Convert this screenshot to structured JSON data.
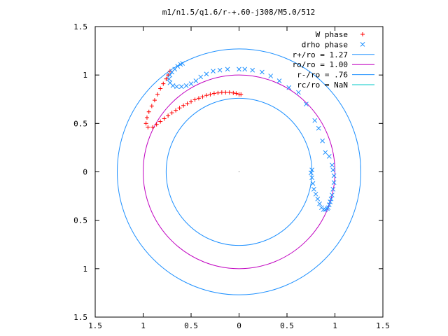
{
  "chart_data": {
    "type": "scatter",
    "title": "m1/n1.5/q1.6/r-+.60-j308/M5.0/512",
    "xlabel": "",
    "ylabel": "",
    "xlim": [
      -1.5,
      1.5
    ],
    "ylim": [
      -1.5,
      1.5
    ],
    "x_tick_values": [
      -1.5,
      -1,
      -0.5,
      0,
      0.5,
      1,
      1.5
    ],
    "x_tick_labels": [
      "1.5",
      "1",
      "0.5",
      "0",
      "0.5",
      "1",
      "1.5"
    ],
    "y_tick_values": [
      1.5,
      1,
      0.5,
      0,
      -0.5,
      -1,
      -1.5
    ],
    "y_tick_labels": [
      "1.5",
      "1",
      "0.5",
      "0",
      "0.5",
      "1",
      "1.5"
    ],
    "grid": false,
    "legend_position": "top-right",
    "series": [
      {
        "name": "W phase",
        "marker": "plus",
        "color": "#ff0000",
        "points": [
          [
            0.02,
            0.8
          ],
          [
            0.0,
            0.8
          ],
          [
            -0.03,
            0.81
          ],
          [
            -0.06,
            0.815
          ],
          [
            -0.1,
            0.82
          ],
          [
            -0.14,
            0.82
          ],
          [
            -0.18,
            0.82
          ],
          [
            -0.22,
            0.815
          ],
          [
            -0.26,
            0.81
          ],
          [
            -0.3,
            0.8
          ],
          [
            -0.34,
            0.79
          ],
          [
            -0.38,
            0.775
          ],
          [
            -0.42,
            0.76
          ],
          [
            -0.46,
            0.745
          ],
          [
            -0.5,
            0.725
          ],
          [
            -0.54,
            0.705
          ],
          [
            -0.58,
            0.685
          ],
          [
            -0.62,
            0.66
          ],
          [
            -0.66,
            0.635
          ],
          [
            -0.7,
            0.61
          ],
          [
            -0.74,
            0.58
          ],
          [
            -0.78,
            0.55
          ],
          [
            -0.82,
            0.52
          ],
          [
            -0.86,
            0.49
          ],
          [
            -0.9,
            0.46
          ],
          [
            -0.95,
            0.46
          ],
          [
            -0.97,
            0.5
          ],
          [
            -0.96,
            0.56
          ],
          [
            -0.94,
            0.62
          ],
          [
            -0.91,
            0.68
          ],
          [
            -0.88,
            0.74
          ],
          [
            -0.85,
            0.8
          ],
          [
            -0.82,
            0.86
          ],
          [
            -0.79,
            0.91
          ],
          [
            -0.76,
            0.96
          ],
          [
            -0.74,
            1.0
          ],
          [
            -0.72,
            1.04
          ]
        ]
      },
      {
        "name": "drho phase",
        "marker": "cross",
        "color": "#1e90ff",
        "points": [
          [
            0.0,
            1.06
          ],
          [
            0.06,
            1.06
          ],
          [
            0.14,
            1.05
          ],
          [
            0.24,
            1.03
          ],
          [
            0.33,
            0.99
          ],
          [
            0.42,
            0.94
          ],
          [
            0.52,
            0.87
          ],
          [
            0.62,
            0.82
          ],
          [
            0.7,
            0.7
          ],
          [
            0.79,
            0.53
          ],
          [
            0.83,
            0.45
          ],
          [
            0.87,
            0.32
          ],
          [
            0.9,
            0.2
          ],
          [
            0.94,
            0.16
          ],
          [
            0.97,
            0.07
          ],
          [
            0.98,
            0.02
          ],
          [
            0.99,
            -0.04
          ],
          [
            0.99,
            -0.11
          ],
          [
            0.98,
            -0.18
          ],
          [
            0.97,
            -0.24
          ],
          [
            0.96,
            -0.28
          ],
          [
            0.95,
            -0.31
          ],
          [
            0.94,
            -0.34
          ],
          [
            0.93,
            -0.37
          ],
          [
            0.92,
            -0.38
          ],
          [
            0.9,
            -0.39
          ],
          [
            0.88,
            -0.39
          ],
          [
            0.86,
            -0.37
          ],
          [
            0.84,
            -0.33
          ],
          [
            0.82,
            -0.28
          ],
          [
            0.8,
            -0.23
          ],
          [
            0.78,
            -0.18
          ],
          [
            0.77,
            -0.12
          ],
          [
            0.76,
            -0.06
          ],
          [
            0.75,
            -0.01
          ],
          [
            0.76,
            0.02
          ],
          [
            -0.12,
            1.06
          ],
          [
            -0.2,
            1.05
          ],
          [
            -0.27,
            1.04
          ],
          [
            -0.34,
            1.01
          ],
          [
            -0.4,
            0.98
          ],
          [
            -0.45,
            0.94
          ],
          [
            -0.5,
            0.91
          ],
          [
            -0.55,
            0.89
          ],
          [
            -0.6,
            0.88
          ],
          [
            -0.65,
            0.88
          ],
          [
            -0.69,
            0.89
          ],
          [
            -0.72,
            0.92
          ],
          [
            -0.73,
            0.96
          ],
          [
            -0.72,
            1.0
          ],
          [
            -0.7,
            1.03
          ],
          [
            -0.67,
            1.06
          ],
          [
            -0.64,
            1.09
          ],
          [
            -0.61,
            1.11
          ],
          [
            -0.59,
            1.12
          ]
        ]
      },
      {
        "name": "r+/ro = 1.27",
        "type": "circle",
        "radius": 1.27,
        "color": "#1e90ff"
      },
      {
        "name": "ro/ro = 1.00",
        "type": "circle",
        "radius": 1.0,
        "color": "#c000c0"
      },
      {
        "name": "r-/ro = .76",
        "type": "circle",
        "radius": 0.76,
        "color": "#1e90ff"
      },
      {
        "name": "rc/ro = NaN",
        "type": "circle",
        "radius": null,
        "color": "#00c8c8"
      }
    ]
  }
}
